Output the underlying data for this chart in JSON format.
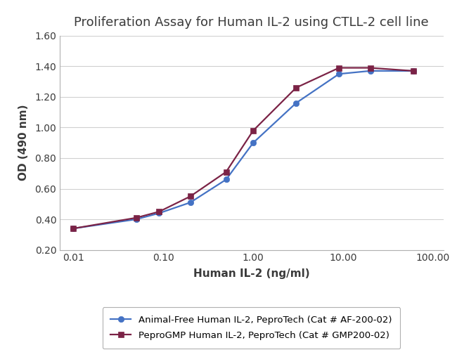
{
  "title": "Proliferation Assay for Human IL-2 using CTLL-2 cell line",
  "xlabel": "Human IL-2 (ng/ml)",
  "ylabel": "OD (490 nm)",
  "ylim": [
    0.2,
    1.6
  ],
  "yticks": [
    0.2,
    0.4,
    0.6,
    0.8,
    1.0,
    1.2,
    1.4,
    1.6
  ],
  "xticks": [
    0.01,
    0.1,
    1.0,
    10.0,
    100.0
  ],
  "xtick_labels": [
    "0.01",
    "0.10",
    "1.00",
    "10.00",
    "100.00"
  ],
  "series": [
    {
      "label": "Animal-Free Human IL-2, PeproTech (Cat # AF-200-02)",
      "color": "#4472C4",
      "marker": "o",
      "markersize": 6,
      "x": [
        0.01,
        0.05,
        0.09,
        0.2,
        0.5,
        1.0,
        3.0,
        9.0,
        20.0,
        60.0
      ],
      "y": [
        0.34,
        0.4,
        0.44,
        0.51,
        0.66,
        0.9,
        1.16,
        1.35,
        1.37,
        1.37
      ]
    },
    {
      "label": "PeproGMP Human IL-2, PeproTech (Cat # GMP200-02)",
      "color": "#7B2346",
      "marker": "s",
      "markersize": 6,
      "x": [
        0.01,
        0.05,
        0.09,
        0.2,
        0.5,
        1.0,
        3.0,
        9.0,
        20.0,
        60.0
      ],
      "y": [
        0.34,
        0.41,
        0.45,
        0.55,
        0.71,
        0.98,
        1.26,
        1.39,
        1.39,
        1.37
      ]
    }
  ],
  "background_color": "#ffffff",
  "grid_color": "#d0d0d0",
  "title_fontsize": 13,
  "label_fontsize": 11,
  "tick_fontsize": 10,
  "legend_fontsize": 9.5
}
